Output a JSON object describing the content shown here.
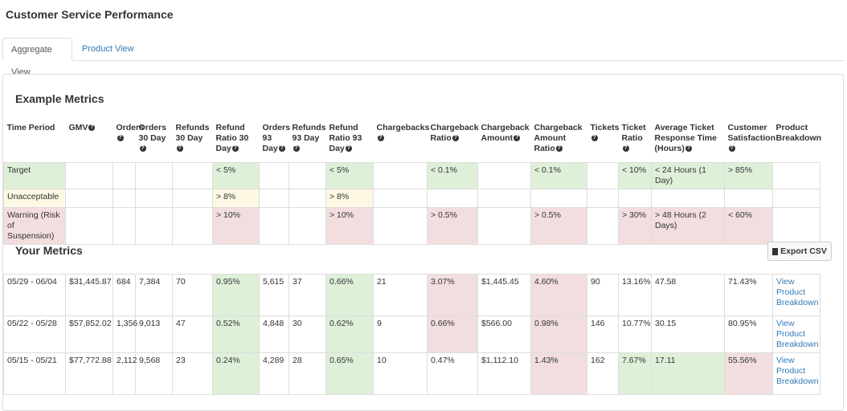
{
  "page": {
    "title": "Customer Service Performance"
  },
  "tabs": [
    {
      "label": "Aggregate View",
      "active": true
    },
    {
      "label": "Product View",
      "active": false
    }
  ],
  "example_metrics": {
    "title": "Example Metrics",
    "headers": [
      "Time Period",
      "GMV",
      "Orders",
      "Orders 30 Day",
      "Refunds 30 Day",
      "Refund Ratio 30 Day",
      "Orders 93 Day",
      "Refunds 93 Day",
      "Refund Ratio 93 Day",
      "Chargebacks",
      "Chargeback Ratio",
      "Chargeback Amount",
      "Chargeback Amount Ratio",
      "Tickets",
      "Ticket Ratio",
      "Average Ticket Response Time (Hours)",
      "Customer Satisfaction",
      "Product Breakdown"
    ],
    "rows": [
      [
        "Target",
        "",
        "",
        "",
        "",
        "< 5%",
        "",
        "",
        "< 5%",
        "",
        "< 0.1%",
        "",
        "< 0.1%",
        "",
        "< 10%",
        "< 24 Hours (1 Day)",
        "> 85%",
        ""
      ],
      [
        "Unacceptable",
        "",
        "",
        "",
        "",
        "> 8%",
        "",
        "",
        "> 8%",
        "",
        "",
        "",
        "",
        "",
        "",
        "",
        "",
        ""
      ],
      [
        "Warning (Risk of Suspension)",
        "",
        "",
        "",
        "",
        "> 10%",
        "",
        "",
        "> 10%",
        "",
        "> 0.5%",
        "",
        "> 0.5%",
        "",
        "> 30%",
        "> 48 Hours (2 Days)",
        "< 60%",
        ""
      ]
    ]
  },
  "your_metrics": {
    "title": "Your Metrics",
    "export_label": "Export CSV",
    "rows": [
      [
        "05/29 - 06/04",
        "$31,445.87",
        "684",
        "7,384",
        "70",
        "0.95%",
        "5,615",
        "37",
        "0.66%",
        "21",
        "3.07%",
        "$1,445.45",
        "4.60%",
        "90",
        "13.16%",
        "47.58",
        "71.43%",
        "View Product Breakdown"
      ],
      [
        "05/22 - 05/28",
        "$57,852.02",
        "1,356",
        "9,013",
        "47",
        "0.52%",
        "4,848",
        "30",
        "0.62%",
        "9",
        "0.66%",
        "$566.00",
        "0.98%",
        "146",
        "10.77%",
        "30.15",
        "80.95%",
        "View Product Breakdown"
      ],
      [
        "05/15 - 05/21",
        "$77,772.88",
        "2,112",
        "9,568",
        "23",
        "0.24%",
        "4,289",
        "28",
        "0.65%",
        "10",
        "0.47%",
        "$1,112.10",
        "1.43%",
        "162",
        "7.67%",
        "17.11",
        "55.56%",
        "View Product Breakdown"
      ]
    ]
  },
  "colors": {
    "good": "#dff0d8",
    "warn": "#fcf8e3",
    "bad": "#f2dede",
    "link": "#337ab7"
  }
}
